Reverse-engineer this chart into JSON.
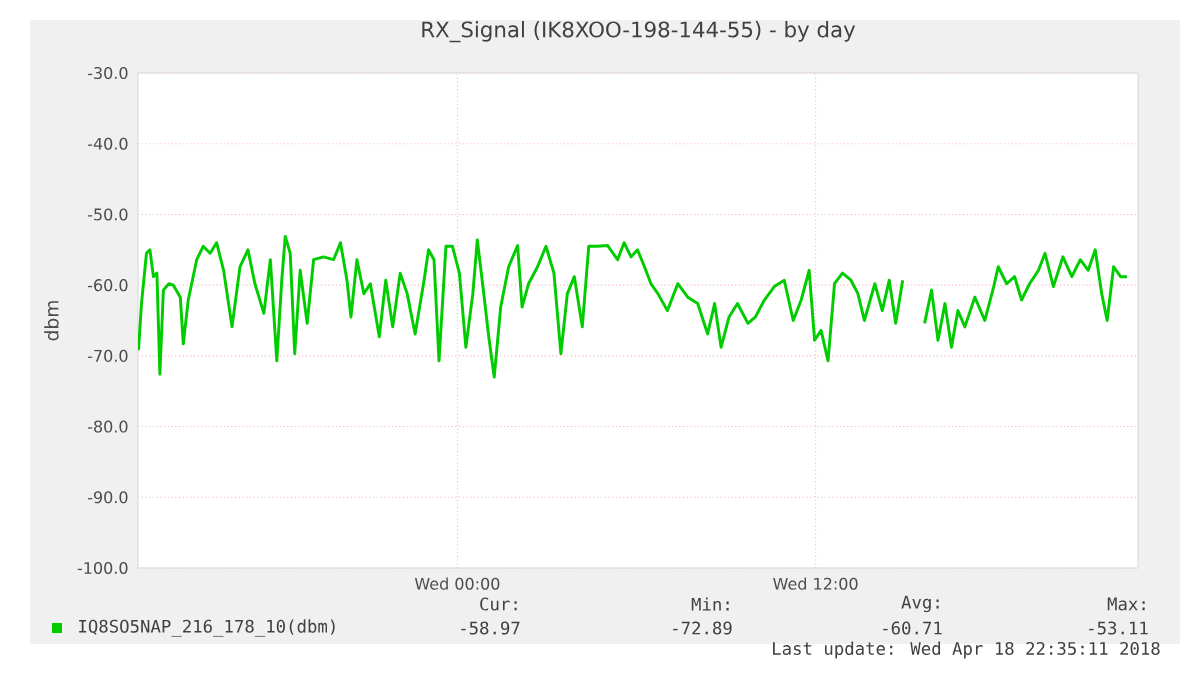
{
  "chart_data": {
    "type": "line",
    "title": "RX_Signal (IK8XOO-198-144-55) - by day",
    "ylabel": "dbm",
    "xlim": [
      "2018-04-17T13:18",
      "2018-04-18T22:48"
    ],
    "xticks": [
      {
        "value": "2018-04-18T00:00",
        "label": "Wed 00:00"
      },
      {
        "value": "2018-04-18T12:00",
        "label": "Wed 12:00"
      }
    ],
    "ylim": [
      -100,
      -30
    ],
    "yticks": [
      {
        "value": -100,
        "label": "-100.0"
      },
      {
        "value": -90,
        "label": "-90.0"
      },
      {
        "value": -80,
        "label": "-80.0"
      },
      {
        "value": -70,
        "label": "-70.0"
      },
      {
        "value": -60,
        "label": "-60.0"
      },
      {
        "value": -50,
        "label": "-50.0"
      },
      {
        "value": -40,
        "label": "-40.0"
      },
      {
        "value": -30,
        "label": "-30.0"
      }
    ],
    "grid": true,
    "legend": "bottom left",
    "marker": "none",
    "line_style": "solid",
    "x": [
      "2018-04-17T13:19",
      "2018-04-17T13:25",
      "2018-04-17T13:35",
      "2018-04-17T13:42",
      "2018-04-17T13:49",
      "2018-04-17T13:56",
      "2018-04-17T14:02",
      "2018-04-17T14:09",
      "2018-04-17T14:20",
      "2018-04-17T14:29",
      "2018-04-17T14:43",
      "2018-04-17T14:49",
      "2018-04-17T14:59",
      "2018-04-17T15:16",
      "2018-04-17T15:29",
      "2018-04-17T15:43",
      "2018-04-17T15:56",
      "2018-04-17T16:10",
      "2018-04-17T16:27",
      "2018-04-17T16:43",
      "2018-04-17T16:59",
      "2018-04-17T17:13",
      "2018-04-17T17:31",
      "2018-04-17T17:44",
      "2018-04-17T17:57",
      "2018-04-17T18:07",
      "2018-04-17T18:14",
      "2018-04-17T18:24",
      "2018-04-17T18:33",
      "2018-04-17T18:44",
      "2018-04-17T18:58",
      "2018-04-17T19:11",
      "2018-04-17T19:31",
      "2018-04-17T19:51",
      "2018-04-17T20:05",
      "2018-04-17T20:18",
      "2018-04-17T20:26",
      "2018-04-17T20:38",
      "2018-04-17T20:52",
      "2018-04-17T21:05",
      "2018-04-17T21:23",
      "2018-04-17T21:36",
      "2018-04-17T21:50",
      "2018-04-17T22:05",
      "2018-04-17T22:19",
      "2018-04-17T22:35",
      "2018-04-17T22:53",
      "2018-04-17T23:02",
      "2018-04-17T23:13",
      "2018-04-17T23:23",
      "2018-04-17T23:37",
      "2018-04-17T23:50",
      "2018-04-18T00:04",
      "2018-04-18T00:17",
      "2018-04-18T00:31",
      "2018-04-18T00:40",
      "2018-04-18T00:53",
      "2018-04-18T01:03",
      "2018-04-18T01:14",
      "2018-04-18T01:27",
      "2018-04-18T01:43",
      "2018-04-18T02:01",
      "2018-04-18T02:10",
      "2018-04-18T02:23",
      "2018-04-18T02:41",
      "2018-04-18T02:58",
      "2018-04-18T03:14",
      "2018-04-18T03:28",
      "2018-04-18T03:41",
      "2018-04-18T03:55",
      "2018-04-18T04:11",
      "2018-04-18T04:24",
      "2018-04-18T04:41",
      "2018-04-18T05:02",
      "2018-04-18T05:22",
      "2018-04-18T05:35",
      "2018-04-18T05:49",
      "2018-04-18T06:02",
      "2018-04-18T06:16",
      "2018-04-18T06:29",
      "2018-04-18T06:43",
      "2018-04-18T07:02",
      "2018-04-18T07:23",
      "2018-04-18T07:43",
      "2018-04-18T08:03",
      "2018-04-18T08:23",
      "2018-04-18T08:37",
      "2018-04-18T08:50",
      "2018-04-18T09:06",
      "2018-04-18T09:23",
      "2018-04-18T09:44",
      "2018-04-18T09:59",
      "2018-04-18T10:17",
      "2018-04-18T10:37",
      "2018-04-18T10:57",
      "2018-04-18T11:15",
      "2018-04-18T11:31",
      "2018-04-18T11:47",
      "2018-04-18T11:58",
      "2018-04-18T12:11",
      "2018-04-18T12:25",
      "2018-04-18T12:38",
      "2018-04-18T12:54",
      "2018-04-18T13:11",
      "2018-04-18T13:25",
      "2018-04-18T13:38",
      "2018-04-18T13:59",
      "2018-04-18T14:14",
      "2018-04-18T14:28",
      "2018-04-18T14:41",
      "2018-04-18T14:55",
      "2018-04-18T15:15",
      "2018-04-18T15:39",
      "2018-04-18T15:53",
      "2018-04-18T16:06",
      "2018-04-18T16:20",
      "2018-04-18T16:33",
      "2018-04-18T16:46",
      "2018-04-18T17:00",
      "2018-04-18T17:20",
      "2018-04-18T17:40",
      "2018-04-18T17:58",
      "2018-04-18T18:07",
      "2018-04-18T18:24",
      "2018-04-18T18:40",
      "2018-04-18T18:54",
      "2018-04-18T19:10",
      "2018-04-18T19:28",
      "2018-04-18T19:41",
      "2018-04-18T19:58",
      "2018-04-18T20:17",
      "2018-04-18T20:35",
      "2018-04-18T20:52",
      "2018-04-18T21:08",
      "2018-04-18T21:22",
      "2018-04-18T21:35",
      "2018-04-18T21:46",
      "2018-04-18T21:59",
      "2018-04-18T22:13",
      "2018-04-18T22:26"
    ],
    "series": [
      {
        "name": "IQ8SO5NAP_216_178_10(dbm)",
        "color": "#00cc00",
        "values": [
          -69.2,
          -62.6,
          -55.5,
          -55,
          -58.8,
          -58.3,
          -72.6,
          -60.7,
          -59.8,
          -60,
          -61.7,
          -68.3,
          -62.1,
          -56.4,
          -54.5,
          -55.5,
          -54,
          -57.9,
          -65.9,
          -57.4,
          -55,
          -59.8,
          -64,
          -56.4,
          -70.7,
          -59.3,
          -53.1,
          -55.5,
          -69.7,
          -57.9,
          -65.4,
          -56.4,
          -56,
          -56.4,
          -54,
          -59.3,
          -64.5,
          -56.4,
          -61.2,
          -59.8,
          -67.3,
          -59.3,
          -65.9,
          -58.3,
          -61.2,
          -66.9,
          -59.3,
          -55,
          -56.4,
          -70.7,
          -54.5,
          -54.5,
          -58.3,
          -68.8,
          -61.2,
          -53.6,
          -61.2,
          -67.3,
          -73,
          -63.1,
          -57.4,
          -54.4,
          -63.1,
          -59.8,
          -57.4,
          -54.5,
          -58.3,
          -69.7,
          -61.2,
          -58.8,
          -65.9,
          -54.5,
          -54.5,
          -54.4,
          -56.4,
          -54,
          -56,
          -55,
          -57.4,
          -59.8,
          -61.2,
          -63.6,
          -59.8,
          -61.7,
          -62.6,
          -66.9,
          -62.6,
          -68.8,
          -64.5,
          -62.6,
          -65.4,
          -64.5,
          -62.1,
          -60.2,
          -59.3,
          -65,
          -62.1,
          -57.9,
          -67.8,
          -66.4,
          -70.7,
          -59.8,
          -58.3,
          -59.3,
          -61.2,
          -65,
          -59.8,
          -63.6,
          -59.3,
          -65.4,
          -59.3,
          null,
          -65.4,
          -60.7,
          -67.8,
          -62.6,
          -68.8,
          -63.6,
          -65.9,
          -61.7,
          -65,
          -60.2,
          -57.4,
          -59.8,
          -58.8,
          -62.1,
          -59.8,
          -57.9,
          -55.5,
          -60.2,
          -56,
          -58.8,
          -56.4,
          -57.9,
          -55,
          -61.2,
          -65,
          -57.4,
          -58.8,
          -58.8
        ]
      }
    ],
    "annotations": [
      "Cur:",
      "-58.97",
      "Min:",
      "-72.89",
      "Avg:",
      "-60.71",
      "Max:",
      "-53.11",
      "Last update: Wed Apr 18 22:35:11 2018"
    ]
  }
}
